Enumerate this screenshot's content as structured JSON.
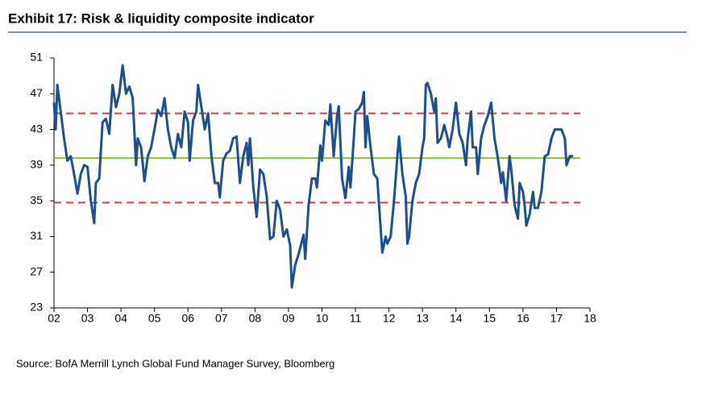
{
  "chart_data": {
    "type": "line",
    "title": "Exhibit 17: Risk & liquidity composite indicator",
    "source": "Source: BofA Merrill Lynch Global Fund Manager Survey, Bloomberg",
    "xlim": [
      2002,
      2018
    ],
    "xticks": [
      {
        "value": 2002,
        "label": "02"
      },
      {
        "value": 2003,
        "label": "03"
      },
      {
        "value": 2004,
        "label": "04"
      },
      {
        "value": 2005,
        "label": "05"
      },
      {
        "value": 2006,
        "label": "06"
      },
      {
        "value": 2007,
        "label": "07"
      },
      {
        "value": 2008,
        "label": "08"
      },
      {
        "value": 2009,
        "label": "09"
      },
      {
        "value": 2010,
        "label": "10"
      },
      {
        "value": 2011,
        "label": "11"
      },
      {
        "value": 2012,
        "label": "12"
      },
      {
        "value": 2013,
        "label": "13"
      },
      {
        "value": 2014,
        "label": "14"
      },
      {
        "value": 2015,
        "label": "15"
      },
      {
        "value": 2016,
        "label": "16"
      },
      {
        "value": 2017,
        "label": "17"
      },
      {
        "value": 2018,
        "label": "18"
      }
    ],
    "ylim": [
      23,
      51
    ],
    "yticks": [
      23,
      27,
      31,
      35,
      39,
      43,
      47,
      51
    ],
    "grid": false,
    "reference_lines": [
      {
        "value": 44.8,
        "color": "#d93a3a",
        "style": "dashed"
      },
      {
        "value": 34.8,
        "color": "#d93a3a",
        "style": "dashed"
      },
      {
        "value": 39.8,
        "color": "#8cc63f",
        "style": "solid"
      }
    ],
    "series": [
      {
        "color": "#1f4e8c",
        "x": [
          2002.0,
          2002.05,
          2002.1,
          2002.2,
          2002.3,
          2002.4,
          2002.5,
          2002.6,
          2002.7,
          2002.8,
          2002.9,
          2003.0,
          2003.1,
          2003.2,
          2003.25,
          2003.35,
          2003.45,
          2003.55,
          2003.65,
          2003.75,
          2003.85,
          2003.95,
          2004.05,
          2004.15,
          2004.25,
          2004.35,
          2004.45,
          2004.5,
          2004.6,
          2004.7,
          2004.8,
          2004.9,
          2005.0,
          2005.1,
          2005.2,
          2005.3,
          2005.4,
          2005.5,
          2005.6,
          2005.7,
          2005.8,
          2005.9,
          2006.0,
          2006.05,
          2006.15,
          2006.25,
          2006.3,
          2006.4,
          2006.5,
          2006.6,
          2006.7,
          2006.8,
          2006.9,
          2006.95,
          2007.05,
          2007.15,
          2007.25,
          2007.35,
          2007.45,
          2007.55,
          2007.65,
          2007.75,
          2007.8,
          2007.85,
          2007.95,
          2008.05,
          2008.15,
          2008.25,
          2008.35,
          2008.45,
          2008.55,
          2008.65,
          2008.75,
          2008.85,
          2008.95,
          2009.05,
          2009.1,
          2009.2,
          2009.3,
          2009.45,
          2009.5,
          2009.6,
          2009.7,
          2009.8,
          2009.85,
          2009.95,
          2010.0,
          2010.1,
          2010.2,
          2010.25,
          2010.35,
          2010.45,
          2010.5,
          2010.6,
          2010.7,
          2010.8,
          2010.85,
          2010.95,
          2011.0,
          2011.1,
          2011.2,
          2011.25,
          2011.3,
          2011.35,
          2011.45,
          2011.55,
          2011.65,
          2011.75,
          2011.8,
          2011.9,
          2011.95,
          2012.05,
          2012.15,
          2012.25,
          2012.3,
          2012.4,
          2012.5,
          2012.55,
          2012.6,
          2012.7,
          2012.8,
          2012.9,
          2013.0,
          2013.05,
          2013.1,
          2013.15,
          2013.25,
          2013.35,
          2013.4,
          2013.45,
          2013.55,
          2013.65,
          2013.75,
          2013.8,
          2013.9,
          2014.0,
          2014.1,
          2014.2,
          2014.3,
          2014.35,
          2014.45,
          2014.5,
          2014.6,
          2014.65,
          2014.75,
          2014.85,
          2014.95,
          2015.05,
          2015.15,
          2015.25,
          2015.35,
          2015.4,
          2015.5,
          2015.6,
          2015.65,
          2015.75,
          2015.85,
          2015.9,
          2016.0,
          2016.05,
          2016.1,
          2016.2,
          2016.3,
          2016.35,
          2016.45,
          2016.55,
          2016.65,
          2016.75,
          2016.85,
          2016.95,
          2017.05,
          2017.15,
          2017.25,
          2017.3,
          2017.4,
          2017.5
        ],
        "values": [
          46,
          43,
          48,
          45,
          42,
          39.5,
          40,
          38,
          35.8,
          38,
          39,
          38.8,
          35,
          32.5,
          37,
          37.5,
          43.8,
          44.2,
          42.5,
          48,
          45.5,
          47,
          50.2,
          47,
          47.8,
          46.5,
          39,
          42,
          41,
          37.2,
          40,
          41,
          43,
          45.2,
          44.5,
          46.5,
          43,
          41,
          39.8,
          42.5,
          41,
          45,
          43.8,
          39.5,
          44,
          45,
          48,
          45.5,
          43,
          44.8,
          40,
          37,
          37,
          35.4,
          39.5,
          40.3,
          40.6,
          42,
          42.2,
          37,
          40,
          41.5,
          39,
          42,
          36.5,
          33.2,
          38.5,
          38,
          35.5,
          30.7,
          31,
          35,
          34,
          31,
          31.8,
          30,
          25.3,
          27.8,
          29,
          31.2,
          28.5,
          34.5,
          37.5,
          37.5,
          36.5,
          41.2,
          39.5,
          44,
          43.5,
          45.8,
          40,
          44.5,
          45.6,
          37.5,
          35.3,
          38.8,
          36.5,
          42,
          45,
          45.3,
          46,
          47.2,
          41,
          44.5,
          41,
          38,
          37.5,
          32,
          29.2,
          31,
          30.2,
          31,
          35,
          40,
          42.2,
          38,
          35.5,
          30.2,
          31,
          35,
          37,
          38,
          41,
          42,
          48,
          48.2,
          47,
          45,
          46.5,
          41.5,
          42,
          43.5,
          42,
          41,
          43,
          46,
          42.5,
          41.5,
          39,
          42,
          45,
          41,
          41,
          38,
          42,
          43.5,
          44.5,
          46,
          42,
          39.8,
          37,
          38.2,
          35,
          40,
          38.5,
          34.5,
          33,
          37,
          36,
          34.5,
          32.2,
          33.5,
          36,
          34.2,
          34.2,
          36,
          40,
          40.2,
          42,
          43,
          43,
          43,
          42,
          39,
          40,
          40
        ]
      }
    ]
  }
}
